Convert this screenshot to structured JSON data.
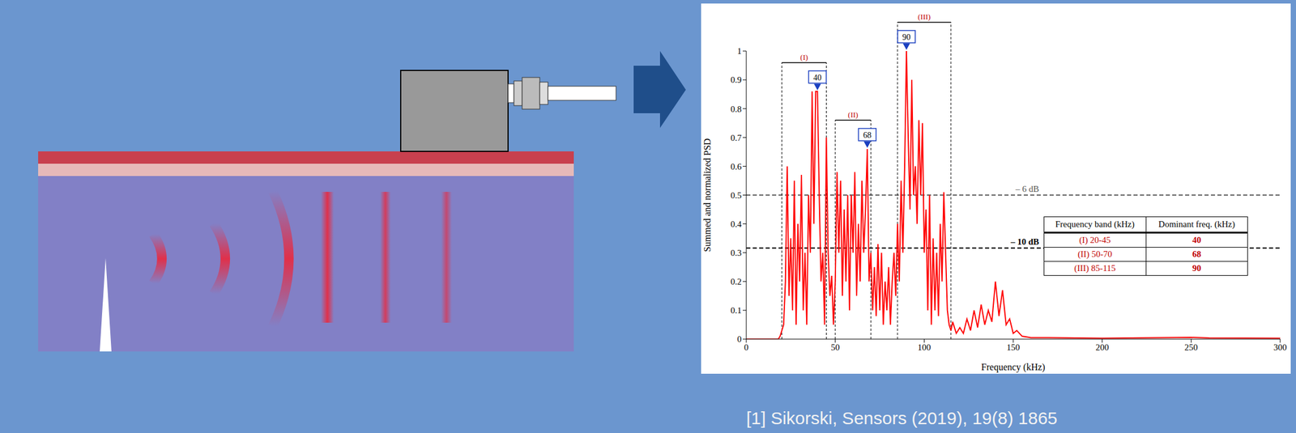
{
  "chart_data": {
    "type": "line",
    "x_label": "Frequency (kHz)",
    "y_label": "Summed and normalized PSD",
    "color": "#ff0000",
    "grid": false,
    "xlim": [
      0,
      300
    ],
    "ylim": [
      0,
      1
    ],
    "xticks": [
      0,
      50,
      100,
      150,
      200,
      250,
      300
    ],
    "yticks": [
      0,
      0.1,
      0.2,
      0.3,
      0.4,
      0.5,
      0.6,
      0.7,
      0.8,
      0.9,
      1
    ],
    "x": [
      0,
      5,
      10,
      15,
      18,
      19,
      20,
      21,
      22,
      23,
      24,
      25,
      26,
      27,
      28,
      29,
      30,
      31,
      32,
      33,
      34,
      35,
      36,
      37,
      38,
      39,
      40,
      41,
      42,
      43,
      44,
      45,
      46,
      47,
      48,
      49,
      50,
      51,
      52,
      53,
      54,
      55,
      56,
      57,
      58,
      59,
      60,
      61,
      62,
      63,
      64,
      65,
      66,
      67,
      68,
      69,
      70,
      71,
      72,
      73,
      74,
      75,
      76,
      77,
      78,
      79,
      80,
      81,
      82,
      83,
      84,
      85,
      86,
      87,
      88,
      89,
      90,
      91,
      92,
      93,
      94,
      95,
      96,
      97,
      98,
      99,
      100,
      101,
      102,
      103,
      104,
      105,
      106,
      107,
      108,
      109,
      110,
      111,
      112,
      113,
      114,
      115,
      116,
      118,
      120,
      122,
      124,
      126,
      128,
      130,
      132,
      134,
      136,
      138,
      140,
      142,
      144,
      146,
      148,
      150,
      152,
      155,
      160,
      170,
      200,
      250,
      260,
      300
    ],
    "values": [
      0,
      0,
      0,
      0,
      0,
      0.01,
      0.03,
      0.05,
      0.2,
      0.6,
      0.15,
      0.35,
      0.1,
      0.55,
      0.05,
      0.4,
      0.2,
      0.57,
      0.1,
      0.3,
      0.05,
      0.5,
      0.3,
      0.86,
      0.4,
      0.86,
      0.86,
      0.5,
      0.2,
      0.3,
      0.05,
      0.7,
      0.3,
      0.15,
      0.22,
      0.05,
      0.2,
      0.58,
      0.3,
      0.55,
      0.15,
      0.45,
      0.2,
      0.5,
      0.1,
      0.5,
      0.3,
      0.58,
      0.15,
      0.4,
      0.2,
      0.55,
      0.3,
      0.45,
      0.66,
      0.2,
      0.3,
      0.1,
      0.25,
      0.08,
      0.33,
      0.1,
      0.3,
      0.05,
      0.2,
      0.1,
      0.25,
      0.05,
      0.2,
      0.3,
      0.15,
      0.4,
      0.2,
      0.55,
      0.3,
      0.6,
      1.0,
      0.7,
      0.45,
      0.9,
      0.5,
      0.6,
      0.4,
      0.76,
      0.5,
      0.75,
      0.3,
      0.45,
      0.1,
      0.5,
      0.05,
      0.35,
      0.1,
      0.3,
      0.08,
      0.4,
      0.2,
      0.51,
      0.3,
      0.1,
      0.05,
      0.03,
      0.06,
      0.02,
      0.04,
      0.02,
      0.07,
      0.03,
      0.1,
      0.04,
      0.12,
      0.05,
      0.1,
      0.06,
      0.2,
      0.08,
      0.17,
      0.05,
      0.07,
      0.02,
      0.03,
      0.01,
      0.005,
      0.005,
      0.003,
      0.006,
      0.004,
      0.003
    ],
    "reference_lines": [
      {
        "value": 0.5,
        "label": "– 6 dB",
        "color": "#555555"
      },
      {
        "value": 0.316,
        "label": "– 10 dB",
        "color": "#000000"
      }
    ],
    "bands": [
      {
        "label": "(I)",
        "range": [
          20,
          45
        ],
        "dominant": 40,
        "peak": 0.86
      },
      {
        "label": "(II)",
        "range": [
          50,
          70
        ],
        "dominant": 68,
        "peak": 0.66
      },
      {
        "label": "(III)",
        "range": [
          85,
          115
        ],
        "dominant": 90,
        "peak": 1.0
      }
    ],
    "table": {
      "header": [
        "Frequency band (kHz)",
        "Dominant freq. (kHz)"
      ],
      "rows": [
        [
          "(I) 20-45",
          "40"
        ],
        [
          "(II) 50-70",
          "68"
        ],
        [
          "(III) 85-115",
          "90"
        ]
      ]
    }
  },
  "citation": "[1] Sikorski, Sensors (2019), 19(8) 1865"
}
